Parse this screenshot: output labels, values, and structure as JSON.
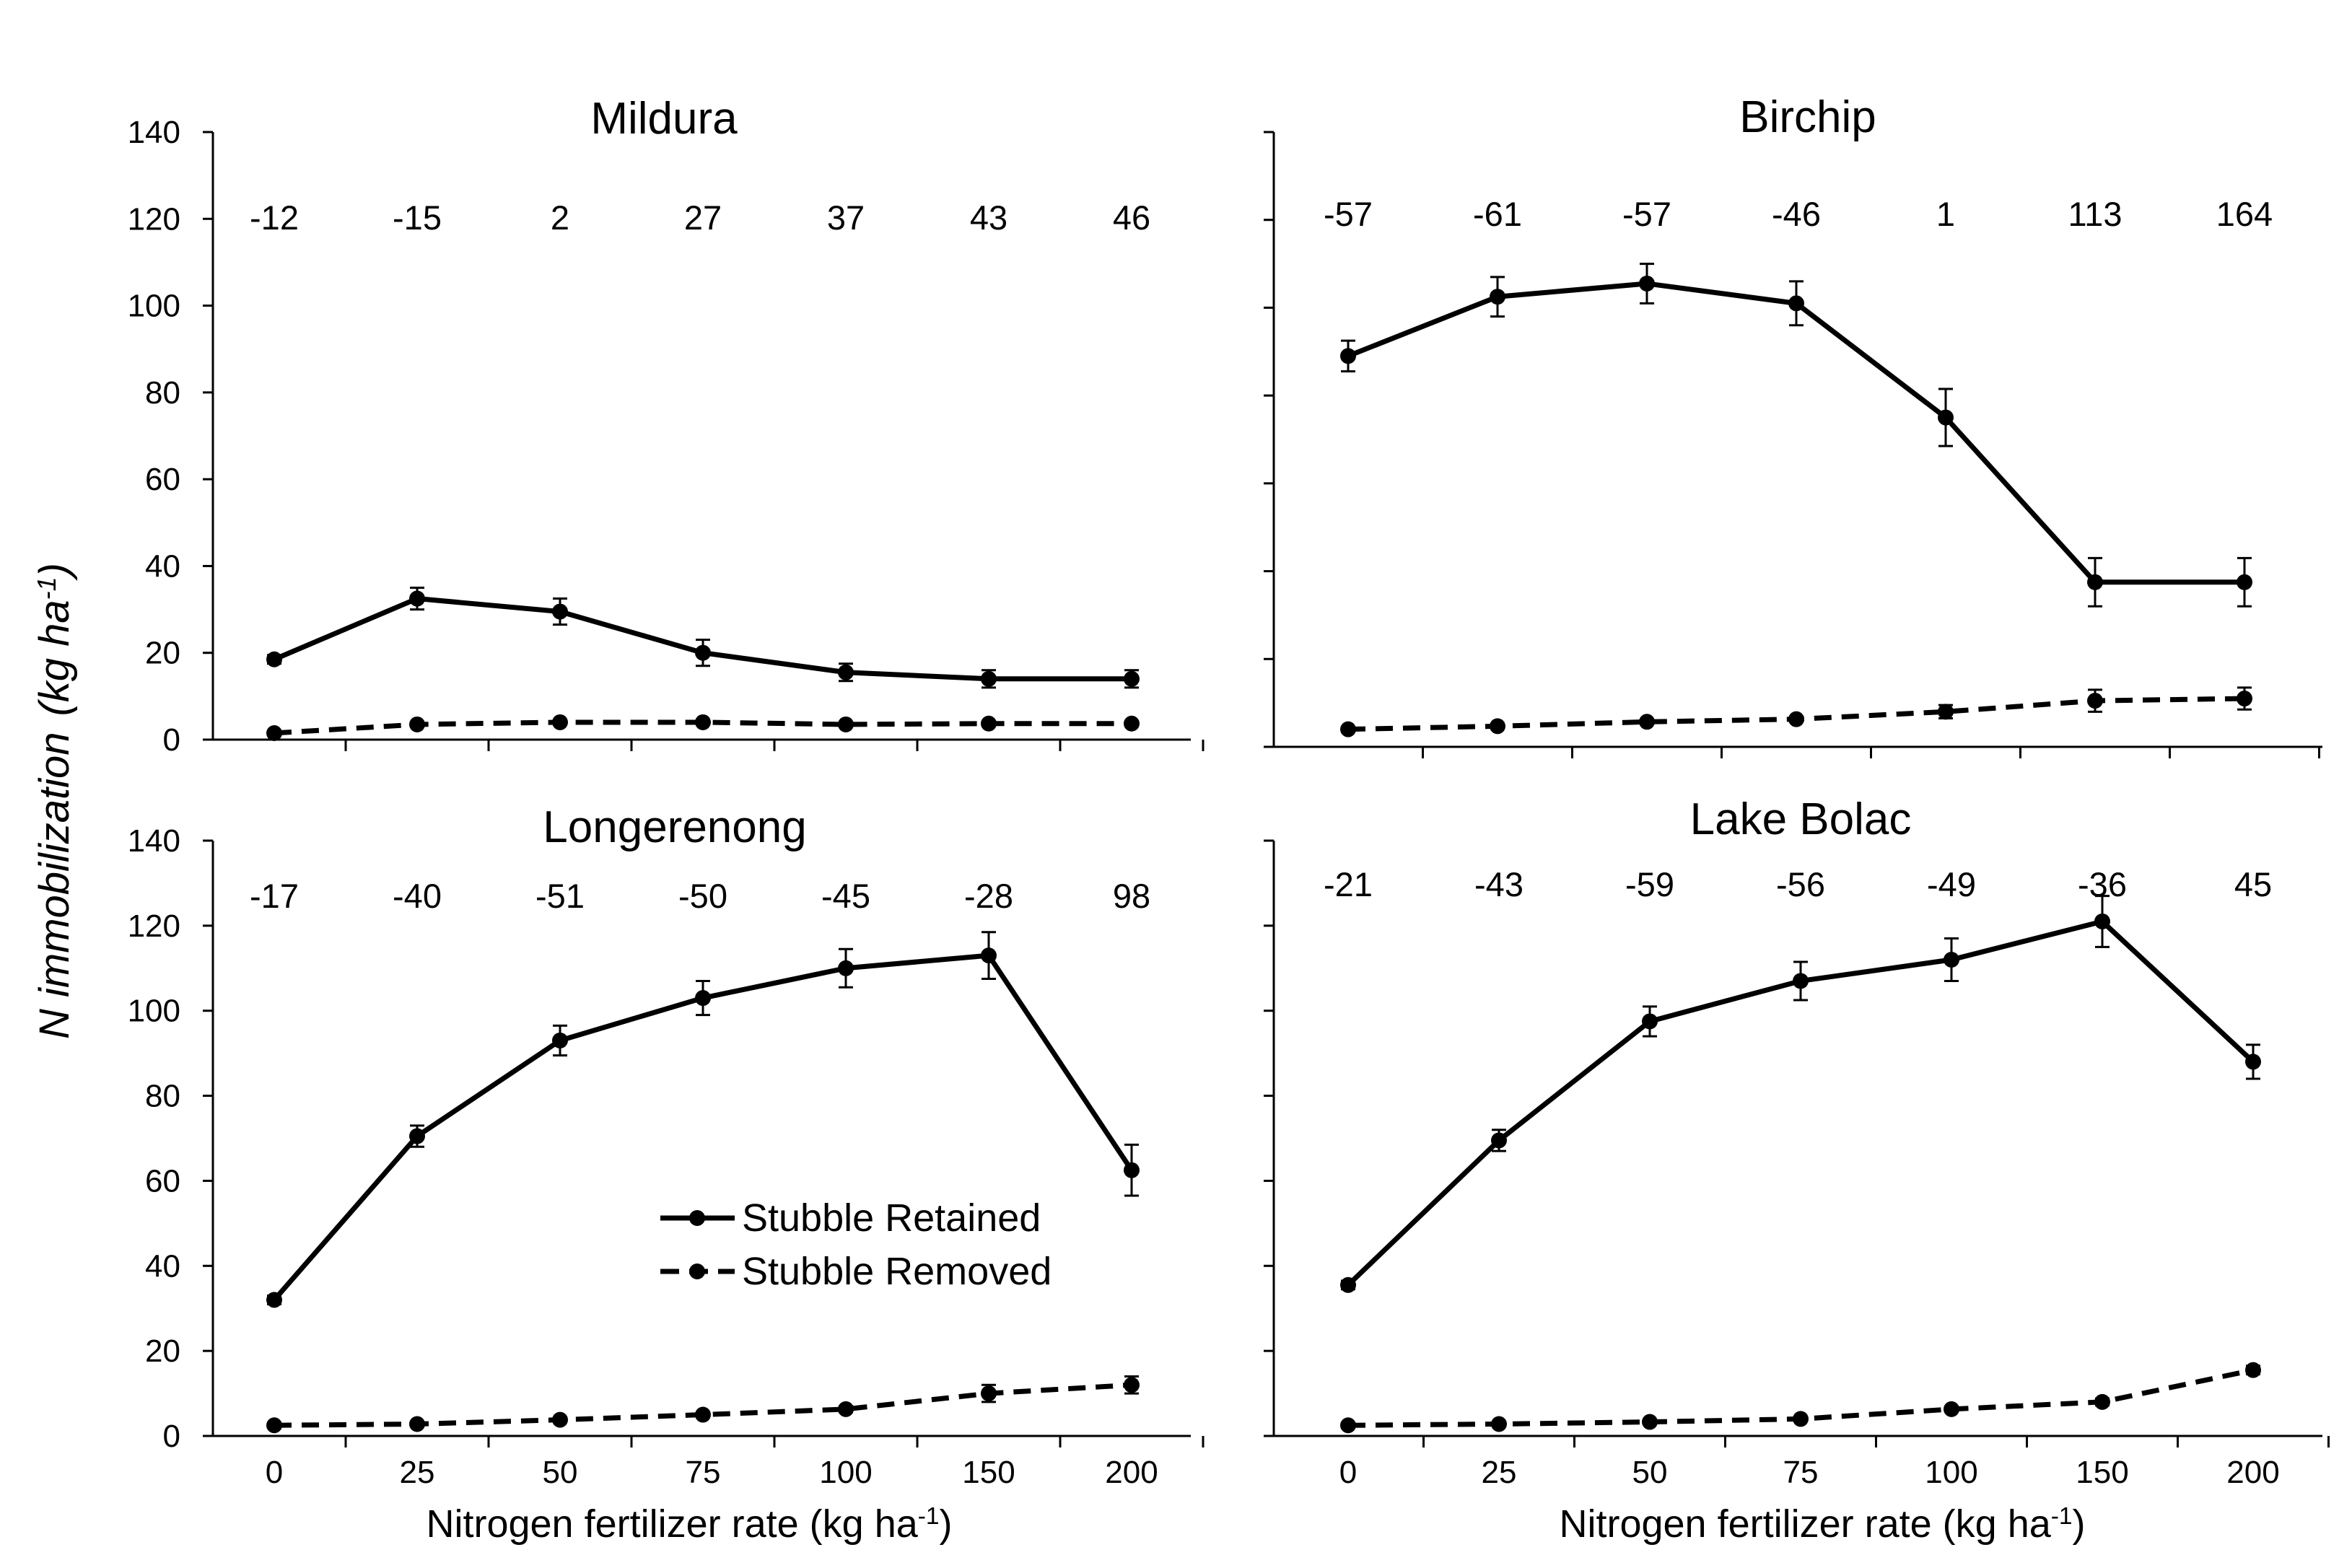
{
  "chart_data": {
    "type": "line",
    "ylabel": "N immobilization",
    "ylabel_unit": "(kg ha-1)",
    "xlabel": "Nitrogen fertilizer rate (kg ha-1)",
    "categories": [
      "0",
      "25",
      "50",
      "75",
      "100",
      "150",
      "200"
    ],
    "ylim": [
      0,
      140
    ],
    "yticks": [
      0,
      20,
      40,
      60,
      80,
      100,
      120,
      140
    ],
    "legend": {
      "location": "inside Longerenong panel, center-right",
      "entries": [
        "Stubble Retained",
        "Stubble Removed"
      ]
    },
    "panels": [
      {
        "title": "Mildura",
        "annotations": [
          "-12",
          "-15",
          "2",
          "27",
          "37",
          "43",
          "46"
        ],
        "series": [
          {
            "name": "Stubble Retained",
            "style": "solid",
            "values": [
              18.5,
              32.5,
              29.5,
              20,
              15.5,
              14,
              14
            ],
            "errors": [
              1,
              2.5,
              3,
              3,
              2,
              2,
              2
            ]
          },
          {
            "name": "Stubble Removed",
            "style": "dashed",
            "values": [
              1.5,
              3.5,
              4,
              4,
              3.5,
              3.7,
              3.7
            ],
            "errors": [
              0.3,
              0.4,
              0.5,
              0.5,
              0.4,
              0.4,
              0.4
            ]
          }
        ]
      },
      {
        "title": "Birchip",
        "annotations": [
          "-57",
          "-61",
          "-57",
          "-46",
          "1",
          "113",
          "164"
        ],
        "series": [
          {
            "name": "Stubble Retained",
            "style": "solid",
            "values": [
              89,
              102.5,
              105.5,
              101,
              75,
              37.5,
              37.5
            ],
            "errors": [
              3.5,
              4.5,
              4.5,
              5,
              6.5,
              5.5,
              5.5
            ]
          },
          {
            "name": "Stubble Removed",
            "style": "dashed",
            "values": [
              4,
              4.7,
              5.7,
              6.3,
              8,
              10.5,
              11
            ],
            "errors": [
              0.5,
              0.5,
              0.5,
              0.6,
              1.5,
              2.5,
              2.5
            ]
          }
        ]
      },
      {
        "title": "Longerenong",
        "annotations": [
          "-17",
          "-40",
          "-51",
          "-50",
          "-45",
          "-28",
          "98"
        ],
        "series": [
          {
            "name": "Stubble Retained",
            "style": "solid",
            "values": [
              32,
              70.5,
              93,
              103,
              110,
              113,
              62.5
            ],
            "errors": [
              1,
              2.5,
              3.5,
              4,
              4.5,
              5.5,
              6
            ]
          },
          {
            "name": "Stubble Removed",
            "style": "dashed",
            "values": [
              2.5,
              2.8,
              3.8,
              5,
              6.3,
              10,
              12
            ],
            "errors": [
              0.4,
              0.4,
              0.5,
              0.6,
              0.7,
              2,
              2
            ]
          }
        ]
      },
      {
        "title": "Lake Bolac",
        "annotations": [
          "-21",
          "-43",
          "-59",
          "-56",
          "-49",
          "-36",
          "45"
        ],
        "series": [
          {
            "name": "Stubble Retained",
            "style": "solid",
            "values": [
              35.5,
              69.5,
              97.5,
              107,
              112,
              121,
              88
            ],
            "errors": [
              1,
              2.5,
              3.5,
              4.5,
              5,
              6,
              4
            ]
          },
          {
            "name": "Stubble Removed",
            "style": "dashed",
            "values": [
              2.5,
              2.8,
              3.3,
              4,
              6.3,
              8,
              15.5
            ],
            "errors": [
              0.4,
              0.4,
              0.4,
              0.5,
              0.6,
              0.8,
              1
            ]
          }
        ]
      }
    ]
  }
}
